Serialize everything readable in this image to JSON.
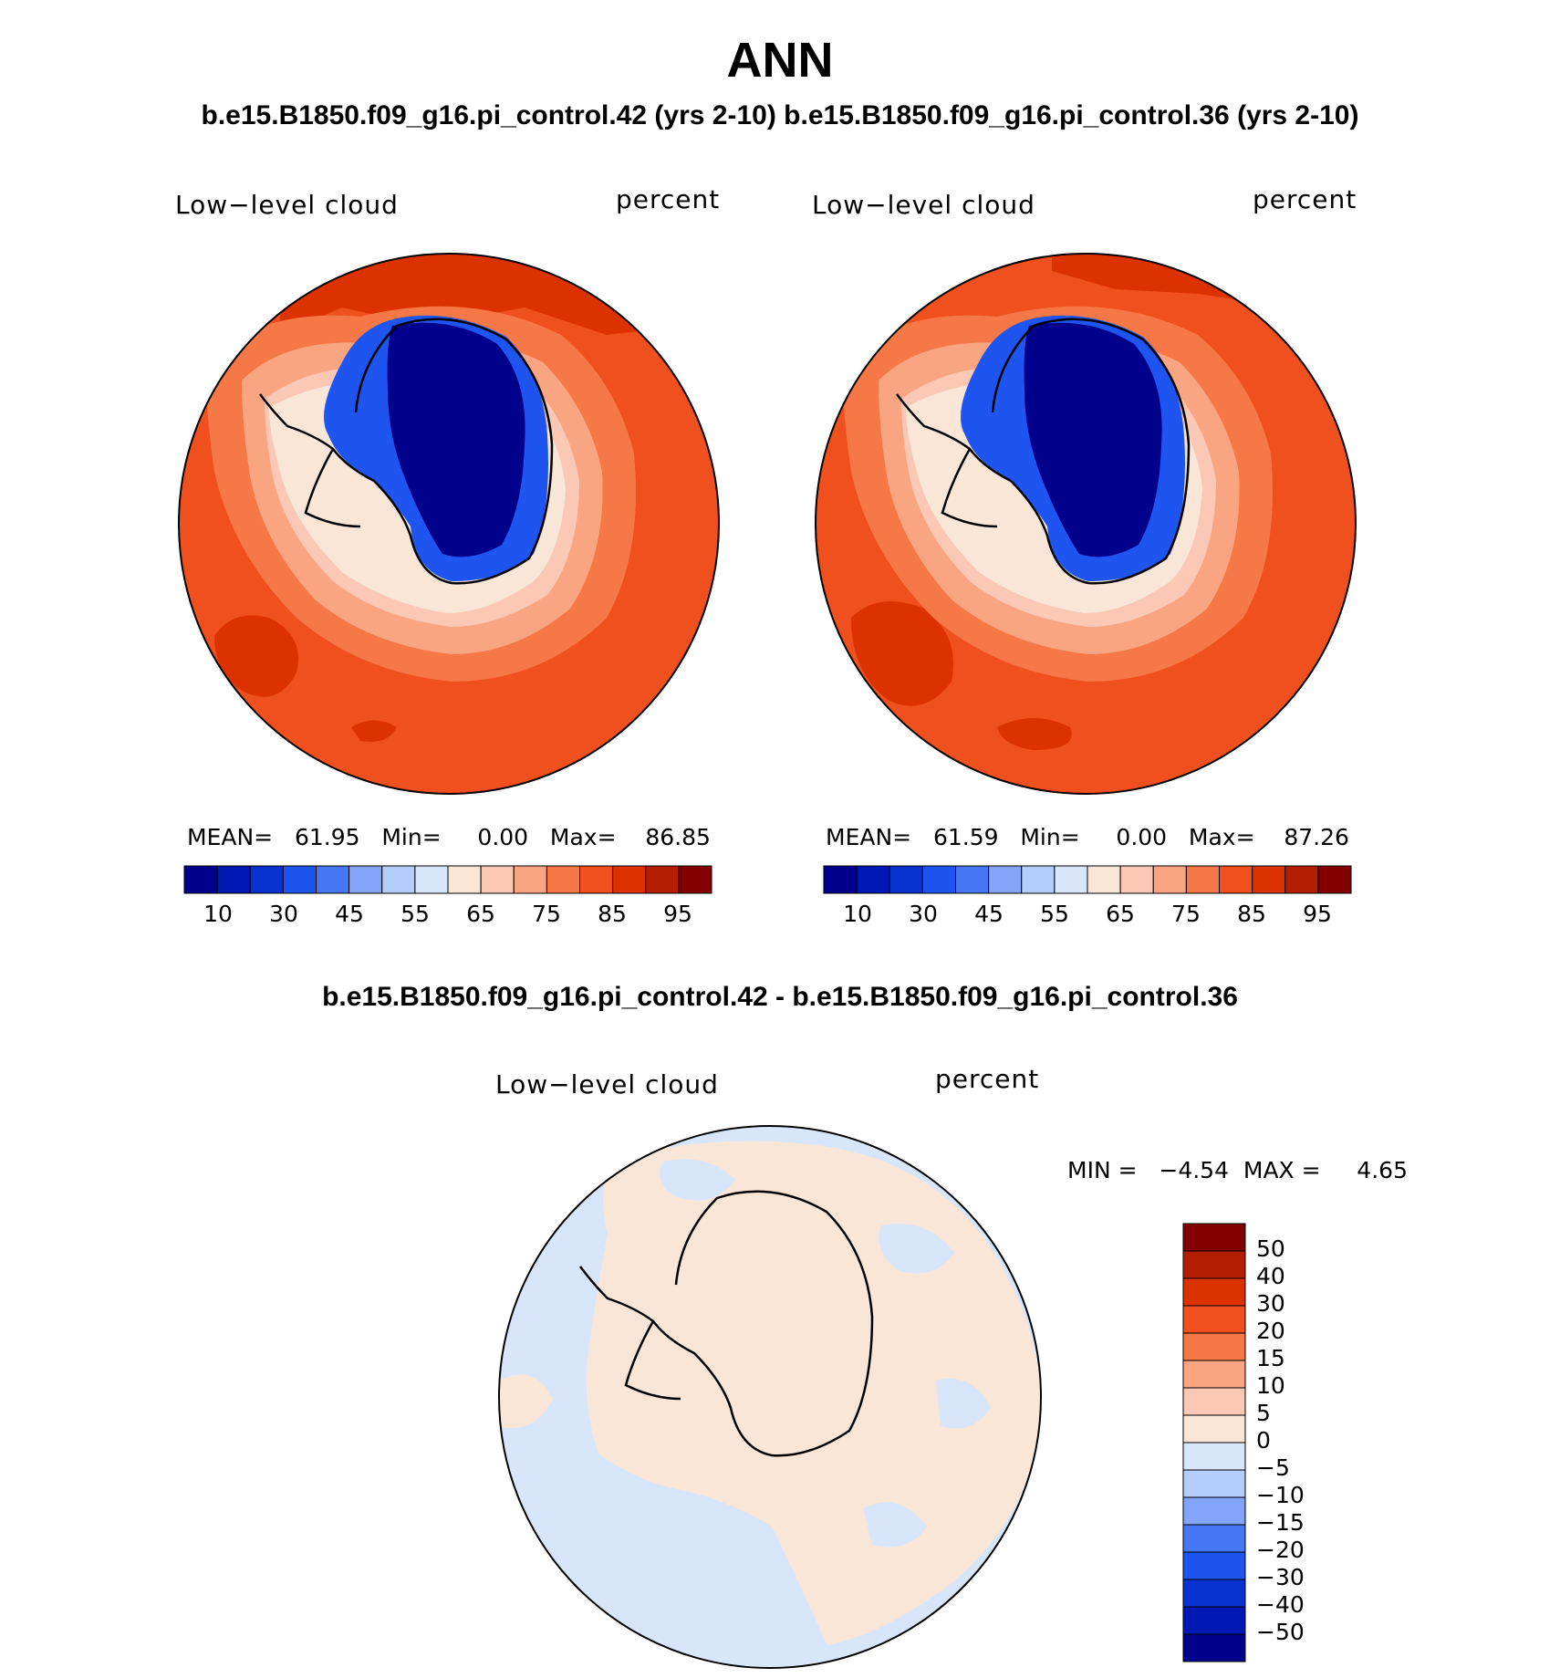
{
  "figure": {
    "title": "ANN",
    "subtitle_top": "b.e15.B1850.f09_g16.pi_control.42 (yrs 2-10) b.e15.B1850.f09_g16.pi_control.36 (yrs 2-10)",
    "subtitle_diff": "b.e15.B1850.f09_g16.pi_control.42 - b.e15.B1850.f09_g16.pi_control.36"
  },
  "panels": [
    {
      "id": "case42",
      "variable_label": "Low−level cloud",
      "units_label": "percent",
      "stats_text": "MEAN=   61.95   Min=     0.00   Max=    86.85",
      "colorbar_ticks": [
        "10",
        "30",
        "45",
        "55",
        "65",
        "75",
        "85",
        "95"
      ]
    },
    {
      "id": "case36",
      "variable_label": "Low−level cloud",
      "units_label": "percent",
      "stats_text": "MEAN=   61.59   Min=     0.00   Max=    87.26",
      "colorbar_ticks": [
        "10",
        "30",
        "45",
        "55",
        "65",
        "75",
        "85",
        "95"
      ]
    },
    {
      "id": "difference",
      "variable_label": "Low−level cloud",
      "units_label": "percent",
      "stats_text": "MIN =   −4.54  MAX =     4.65",
      "colorbar_ticks": [
        "50",
        "40",
        "30",
        "20",
        "15",
        "10",
        "5",
        "0",
        "−5",
        "−10",
        "−15",
        "−20",
        "−30",
        "−40",
        "−50"
      ]
    }
  ],
  "colors": {
    "field_scale": [
      "#00008c",
      "#0018b4",
      "#0a32d2",
      "#1e55f0",
      "#4678f5",
      "#82a5fa",
      "#b4cdfa",
      "#d7e6fa",
      "#fae6d7",
      "#fac8b4",
      "#faa582",
      "#f57846",
      "#f0501e",
      "#dc3200",
      "#b41e00",
      "#820000"
    ],
    "diff_scale": [
      "#00008c",
      "#0018b4",
      "#0a32d2",
      "#1e55f0",
      "#4678f5",
      "#82a5fa",
      "#b4cdfa",
      "#d7e6fa",
      "#fae6d7",
      "#fac8b4",
      "#faa582",
      "#f57846",
      "#f0501e",
      "#dc3200",
      "#b41e00",
      "#820000"
    ]
  }
}
